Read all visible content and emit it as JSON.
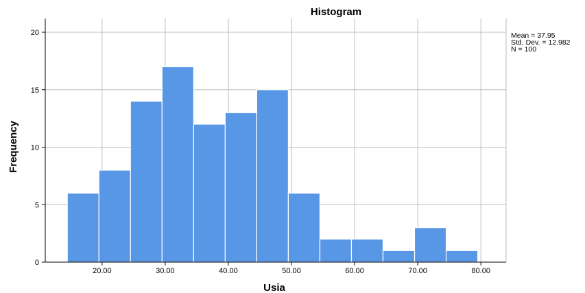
{
  "chart_data": {
    "type": "bar",
    "title": "Histogram",
    "xlabel": "Usia",
    "ylabel": "Frequency",
    "bin_start": 14.5,
    "bin_width": 5,
    "values": [
      6,
      8,
      14,
      17,
      12,
      13,
      15,
      6,
      2,
      2,
      1,
      3,
      1
    ],
    "x_ticks": [
      {
        "value": 20,
        "label": "20.00"
      },
      {
        "value": 30,
        "label": "30.00"
      },
      {
        "value": 40,
        "label": "40.00"
      },
      {
        "value": 50,
        "label": "50.00"
      },
      {
        "value": 60,
        "label": "60.00"
      },
      {
        "value": 70,
        "label": "70.00"
      },
      {
        "value": 80,
        "label": "80.00"
      }
    ],
    "y_ticks": [
      0,
      5,
      10,
      15,
      20
    ],
    "xlim": [
      11,
      84
    ],
    "ylim": [
      0,
      20
    ],
    "grid": true,
    "bar_color": "#5896e6",
    "stats": {
      "mean": "Mean = 37.95",
      "std": "Std. Dev. = 12.982",
      "n": "N = 100"
    }
  }
}
